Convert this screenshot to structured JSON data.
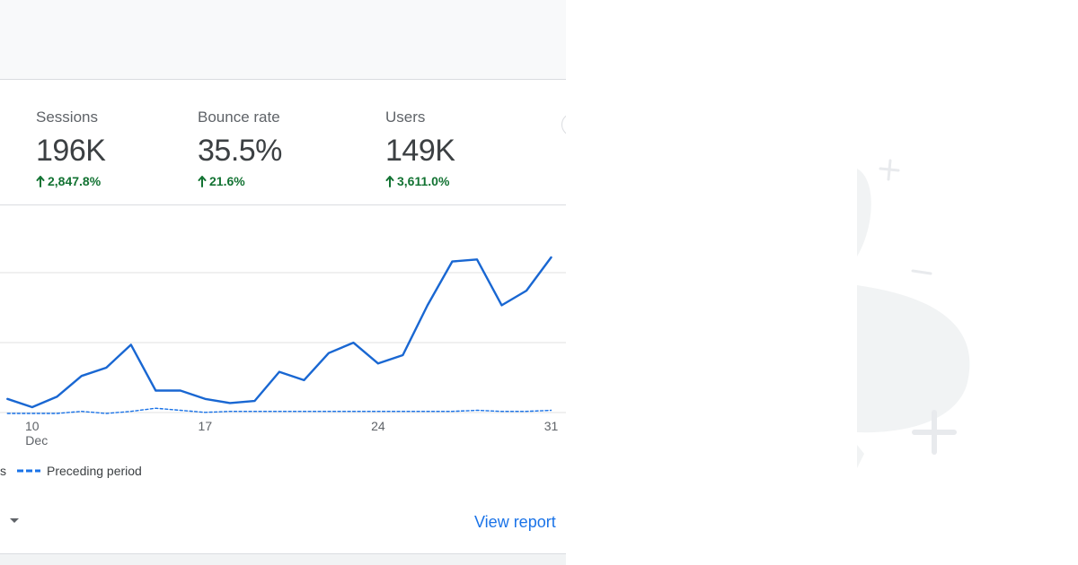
{
  "metrics": [
    {
      "label": "Sessions",
      "value": "196K",
      "change": "2,847.8%"
    },
    {
      "label": "Bounce rate",
      "value": "35.5%",
      "change": "21.6%"
    },
    {
      "label": "Users",
      "value": "149K",
      "change": "3,611.0%"
    }
  ],
  "chart_data": {
    "type": "line",
    "x_ticks": [
      {
        "day": 10,
        "label": "10",
        "sublabel": "Dec"
      },
      {
        "day": 17,
        "label": "17",
        "sublabel": ""
      },
      {
        "day": 24,
        "label": "24",
        "sublabel": ""
      },
      {
        "day": 31,
        "label": "31",
        "sublabel": ""
      }
    ],
    "gridlines": 3,
    "series": [
      {
        "name": "",
        "style": "solid",
        "color": "#1967d2",
        "points": [
          [
            9,
            37
          ],
          [
            10,
            33
          ],
          [
            11,
            38
          ],
          [
            12,
            48
          ],
          [
            13,
            52
          ],
          [
            14,
            63
          ],
          [
            15,
            41
          ],
          [
            16,
            41
          ],
          [
            17,
            37
          ],
          [
            18,
            35
          ],
          [
            19,
            36
          ],
          [
            20,
            50
          ],
          [
            21,
            46
          ],
          [
            22,
            59
          ],
          [
            23,
            64
          ],
          [
            24,
            54
          ],
          [
            25,
            58
          ],
          [
            26,
            82
          ],
          [
            27,
            103
          ],
          [
            28,
            104
          ],
          [
            29,
            82
          ],
          [
            30,
            89
          ],
          [
            31,
            105
          ]
        ]
      },
      {
        "name": "Preceding period",
        "style": "dashed",
        "color": "#1a73e8",
        "points": [
          [
            9,
            30
          ],
          [
            10,
            30
          ],
          [
            11,
            30
          ],
          [
            12,
            31
          ],
          [
            13,
            30
          ],
          [
            14,
            31
          ],
          [
            15,
            32.5
          ],
          [
            16,
            31.5
          ],
          [
            17,
            30.5
          ],
          [
            18,
            31
          ],
          [
            19,
            31
          ],
          [
            20,
            31
          ],
          [
            21,
            31
          ],
          [
            22,
            31
          ],
          [
            23,
            31
          ],
          [
            24,
            31
          ],
          [
            25,
            31
          ],
          [
            26,
            31
          ],
          [
            27,
            31
          ],
          [
            28,
            31.5
          ],
          [
            29,
            31
          ],
          [
            30,
            31
          ],
          [
            31,
            31.5
          ]
        ]
      }
    ],
    "xlim": [
      8.7,
      31.6
    ],
    "ylim": [
      30,
      130
    ],
    "grid": true
  },
  "legend": {
    "series_label": "Preceding period",
    "truncated_prefix": "s"
  },
  "footer": {
    "view_report": "View report"
  },
  "colors": {
    "accent": "#1a73e8",
    "positive": "#137333",
    "line": "#1967d2"
  }
}
